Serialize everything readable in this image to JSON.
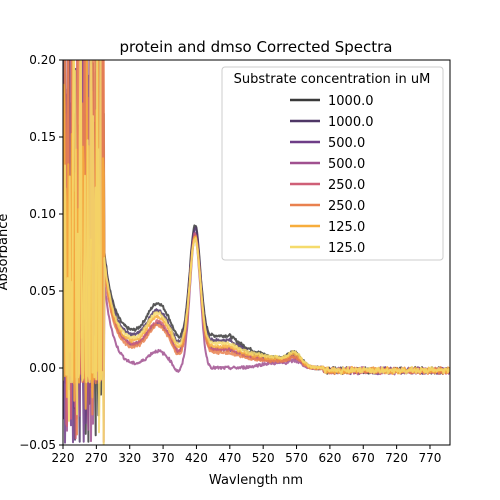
{
  "chart_data": {
    "type": "line",
    "title": "protein and dmso Corrected Spectra",
    "xlabel": "Wavlength nm",
    "ylabel": "Absorbance",
    "xlim": [
      220,
      800
    ],
    "ylim": [
      -0.05,
      0.2
    ],
    "xticks": [
      220,
      270,
      320,
      370,
      420,
      470,
      520,
      570,
      620,
      670,
      720,
      770
    ],
    "yticks": [
      -0.05,
      0.0,
      0.05,
      0.1,
      0.15,
      0.2
    ],
    "ytick_labels": [
      "−0.05",
      "0.00",
      "0.05",
      "0.10",
      "0.15",
      "0.20"
    ],
    "grid": false,
    "legend": {
      "title": "Substrate concentration in uM",
      "placement": "upper right"
    },
    "series": [
      {
        "name": "1000.0",
        "color": "#3a3a3a",
        "baseline": 0.021,
        "peak": 0.093,
        "shoulder": 0.035,
        "tail": 0.009
      },
      {
        "name": "1000.0",
        "color": "#4e3666",
        "baseline": 0.018,
        "peak": 0.091,
        "shoulder": 0.032,
        "tail": 0.007
      },
      {
        "name": "500.0",
        "color": "#6e3d87",
        "baseline": 0.012,
        "peak": 0.088,
        "shoulder": 0.028,
        "tail": 0.006
      },
      {
        "name": "500.0",
        "color": "#a0508f",
        "baseline": 0.0,
        "peak": 0.085,
        "shoulder": 0.018,
        "tail": 0.004
      },
      {
        "name": "250.0",
        "color": "#cf5f77",
        "baseline": 0.012,
        "peak": 0.087,
        "shoulder": 0.03,
        "tail": 0.006
      },
      {
        "name": "250.0",
        "color": "#e9814f",
        "baseline": 0.01,
        "peak": 0.086,
        "shoulder": 0.029,
        "tail": 0.006
      },
      {
        "name": "125.0",
        "color": "#f7ad3c",
        "baseline": 0.014,
        "peak": 0.085,
        "shoulder": 0.032,
        "tail": 0.008
      },
      {
        "name": "125.0",
        "color": "#f5db6c",
        "baseline": 0.016,
        "peak": 0.084,
        "shoulder": 0.033,
        "tail": 0.009
      }
    ]
  }
}
